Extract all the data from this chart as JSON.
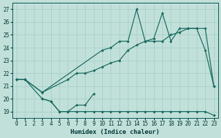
{
  "xlabel": "Humidex (Indice chaleur)",
  "xlim": [
    -0.5,
    23.5
  ],
  "ylim": [
    18.5,
    27.5
  ],
  "yticks": [
    19,
    20,
    21,
    22,
    23,
    24,
    25,
    26,
    27
  ],
  "xticks": [
    0,
    1,
    2,
    3,
    4,
    5,
    6,
    7,
    8,
    9,
    10,
    11,
    12,
    13,
    14,
    15,
    16,
    17,
    18,
    19,
    20,
    21,
    22,
    23
  ],
  "bg_color": "#c2e0da",
  "grid_color": "#9fccc5",
  "line_color": "#1a6b60",
  "line_jagged_x": [
    0,
    1,
    3,
    10,
    11,
    12,
    13,
    14,
    15,
    16,
    17,
    18,
    19,
    20,
    21,
    22,
    23
  ],
  "line_jagged_y": [
    21.5,
    21.5,
    20.5,
    23.8,
    24.0,
    24.5,
    24.5,
    27.0,
    24.5,
    24.7,
    26.7,
    24.5,
    25.5,
    25.5,
    25.5,
    23.8,
    21.0
  ],
  "line_smooth_x": [
    0,
    1,
    3,
    6,
    7,
    8,
    9,
    10,
    11,
    12,
    13,
    14,
    15,
    16,
    17,
    18,
    19,
    20,
    21,
    22,
    23
  ],
  "line_smooth_y": [
    21.5,
    21.5,
    20.5,
    21.5,
    22.0,
    22.0,
    22.2,
    22.5,
    22.8,
    23.0,
    23.8,
    24.2,
    24.5,
    24.5,
    24.5,
    25.0,
    25.2,
    25.5,
    25.5,
    25.5,
    21.0
  ],
  "line_lower_x": [
    0,
    1,
    3,
    4,
    5,
    6,
    7,
    8,
    9,
    10,
    11,
    12,
    13,
    14,
    15,
    16,
    17,
    18,
    19,
    20,
    21,
    22,
    23
  ],
  "line_lower_y": [
    21.5,
    21.5,
    20.0,
    19.8,
    19.0,
    19.0,
    19.0,
    19.0,
    19.0,
    19.0,
    19.0,
    19.0,
    19.0,
    19.0,
    19.0,
    19.0,
    19.0,
    19.0,
    19.0,
    19.0,
    19.0,
    19.0,
    18.7
  ],
  "line_short_x": [
    3,
    4,
    5,
    6,
    7,
    8,
    9
  ],
  "line_short_y": [
    20.0,
    19.8,
    19.0,
    19.0,
    19.5,
    19.5,
    20.4
  ]
}
